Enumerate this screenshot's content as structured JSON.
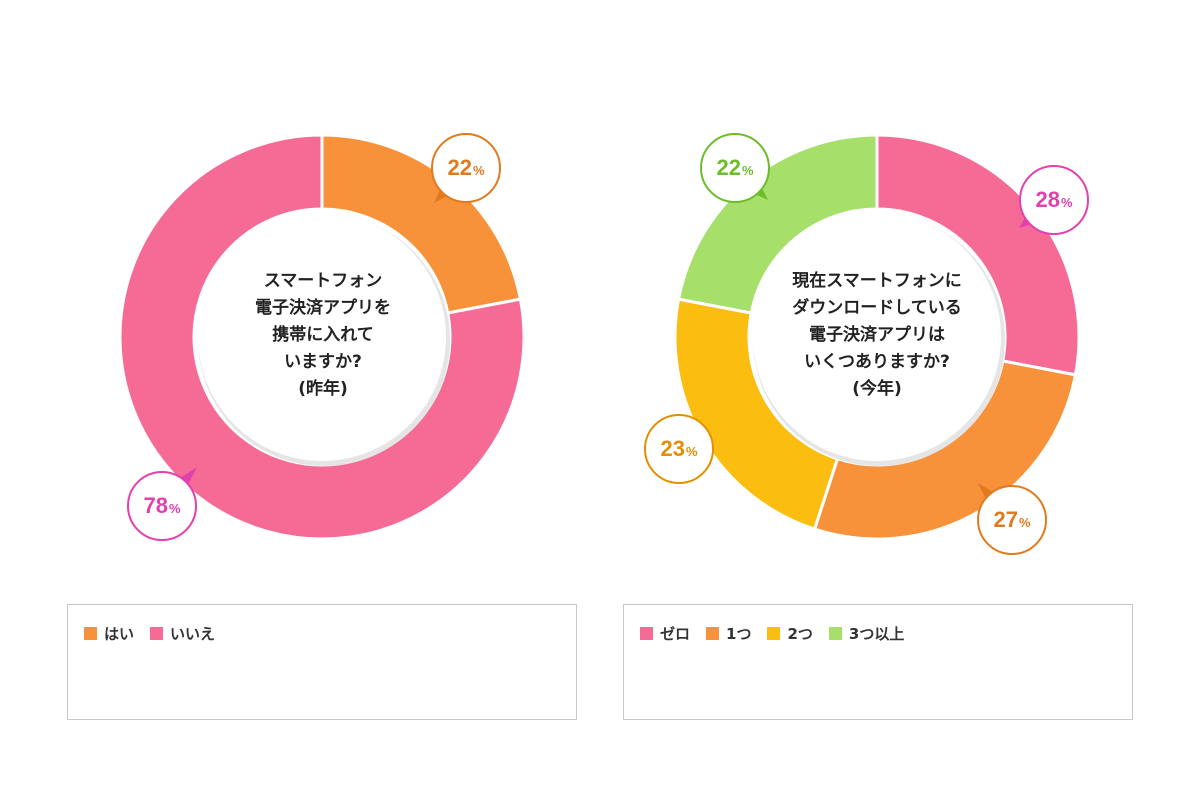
{
  "chart_data": [
    {
      "type": "pie",
      "center_text": [
        "スマートフォン",
        "電子決済アプリを",
        "携帯に入れて",
        "いますか?",
        "(昨年)"
      ],
      "categories": [
        "はい",
        "いいえ"
      ],
      "values": [
        22,
        78
      ],
      "value_labels": [
        "22",
        "78"
      ],
      "unit": "%",
      "colors": [
        "#f7913a",
        "#f56b96"
      ],
      "callout_colors": [
        "#e07a1c",
        "#e33fae"
      ]
    },
    {
      "type": "pie",
      "center_text": [
        "現在スマートフォンに",
        "ダウンロードしている",
        "電子決済アプリは",
        "いくつありますか?",
        "(今年)"
      ],
      "categories": [
        "ゼロ",
        "1つ",
        "2つ",
        "3つ以上"
      ],
      "values": [
        28,
        27,
        23,
        22
      ],
      "value_labels": [
        "28",
        "27",
        "23",
        "22"
      ],
      "unit": "%",
      "colors": [
        "#f56b96",
        "#f7913a",
        "#fbbd0f",
        "#a6e06b"
      ],
      "callout_colors": [
        "#e33fae",
        "#e07a1c",
        "#e09000",
        "#6dbd2a"
      ]
    }
  ]
}
